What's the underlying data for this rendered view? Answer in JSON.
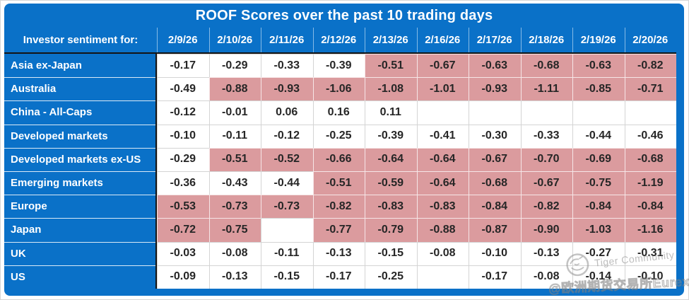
{
  "chart_data": {
    "type": "table",
    "title": "ROOF Scores over the past 10 trading days",
    "row_header_label": "Investor sentiment for:",
    "columns": [
      "2/9/26",
      "2/10/26",
      "2/11/26",
      "2/12/26",
      "2/13/26",
      "2/16/26",
      "2/17/26",
      "2/18/26",
      "2/19/26",
      "2/20/26"
    ],
    "rows": [
      {
        "label": "Asia ex-Japan",
        "values": [
          "-0.17",
          "-0.29",
          "-0.33",
          "-0.39",
          "-0.51",
          "-0.67",
          "-0.63",
          "-0.68",
          "-0.63",
          "-0.82"
        ],
        "highlight": [
          0,
          0,
          0,
          0,
          1,
          1,
          1,
          1,
          1,
          1
        ]
      },
      {
        "label": "Australia",
        "values": [
          "-0.49",
          "-0.88",
          "-0.93",
          "-1.06",
          "-1.08",
          "-1.01",
          "-0.93",
          "-1.11",
          "-0.85",
          "-0.71"
        ],
        "highlight": [
          0,
          1,
          1,
          1,
          1,
          1,
          1,
          1,
          1,
          1
        ]
      },
      {
        "label": "China - All-Caps",
        "values": [
          "-0.12",
          "-0.01",
          "0.06",
          "0.16",
          "0.11",
          "",
          "",
          "",
          "",
          ""
        ],
        "highlight": [
          0,
          0,
          0,
          0,
          0,
          0,
          0,
          0,
          0,
          0
        ]
      },
      {
        "label": "Developed markets",
        "values": [
          "-0.10",
          "-0.11",
          "-0.12",
          "-0.25",
          "-0.39",
          "-0.41",
          "-0.30",
          "-0.33",
          "-0.44",
          "-0.46"
        ],
        "highlight": [
          0,
          0,
          0,
          0,
          0,
          0,
          0,
          0,
          0,
          0
        ]
      },
      {
        "label": "Developed markets ex-US",
        "values": [
          "-0.29",
          "-0.51",
          "-0.52",
          "-0.66",
          "-0.64",
          "-0.64",
          "-0.67",
          "-0.70",
          "-0.69",
          "-0.68"
        ],
        "highlight": [
          0,
          1,
          1,
          1,
          1,
          1,
          1,
          1,
          1,
          1
        ]
      },
      {
        "label": "Emerging markets",
        "values": [
          "-0.36",
          "-0.43",
          "-0.44",
          "-0.51",
          "-0.59",
          "-0.64",
          "-0.68",
          "-0.67",
          "-0.75",
          "-1.19"
        ],
        "highlight": [
          0,
          0,
          0,
          1,
          1,
          1,
          1,
          1,
          1,
          1
        ]
      },
      {
        "label": "Europe",
        "values": [
          "-0.53",
          "-0.73",
          "-0.73",
          "-0.82",
          "-0.83",
          "-0.83",
          "-0.84",
          "-0.82",
          "-0.84",
          "-0.84"
        ],
        "highlight": [
          1,
          1,
          1,
          1,
          1,
          1,
          1,
          1,
          1,
          1
        ]
      },
      {
        "label": "Japan",
        "values": [
          "-0.72",
          "-0.75",
          "",
          "-0.77",
          "-0.79",
          "-0.88",
          "-0.87",
          "-0.90",
          "-1.03",
          "-1.16"
        ],
        "highlight": [
          1,
          1,
          0,
          1,
          1,
          1,
          1,
          1,
          1,
          1
        ]
      },
      {
        "label": "UK",
        "values": [
          "-0.03",
          "-0.08",
          "-0.11",
          "-0.13",
          "-0.15",
          "-0.08",
          "-0.10",
          "-0.13",
          "-0.27",
          "-0.31"
        ],
        "highlight": [
          0,
          0,
          0,
          0,
          0,
          0,
          0,
          0,
          0,
          0
        ]
      },
      {
        "label": "US",
        "values": [
          "-0.09",
          "-0.13",
          "-0.15",
          "-0.17",
          "-0.25",
          "",
          "-0.17",
          "-0.08",
          "-0.14",
          "-0.10"
        ],
        "highlight": [
          0,
          0,
          0,
          0,
          0,
          0,
          0,
          0,
          0,
          0
        ]
      }
    ],
    "layout": {
      "highlight_meaning": "negative-sentiment highlighted cells",
      "legend": "off",
      "grid": "on"
    }
  },
  "colors": {
    "header_blue": "#0a71c8",
    "highlight_pink": "#db9b9e",
    "cell_text": "#262626",
    "divider_dark": "#141414"
  },
  "watermark": {
    "community_label": "Tiger Community",
    "handle": "@欧洲期货交易所Eurex",
    "logo": "tiger-logo-icon"
  }
}
